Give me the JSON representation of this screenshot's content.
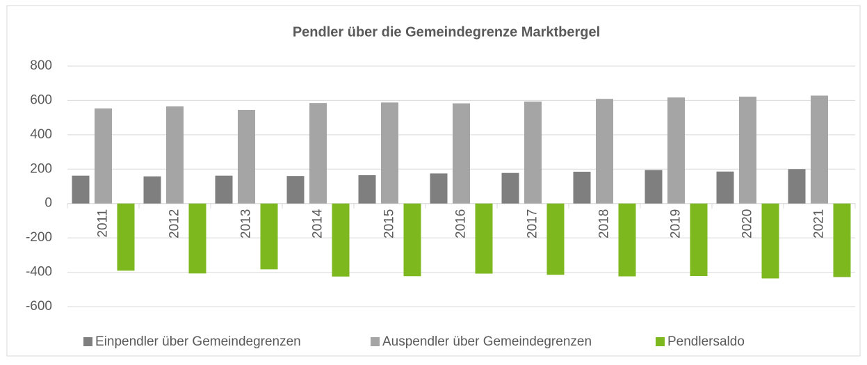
{
  "chart_data": {
    "type": "bar",
    "title": "Pendler über die Gemeindegrenze Marktbergel",
    "categories": [
      "2011",
      "2012",
      "2013",
      "2014",
      "2015",
      "2016",
      "2017",
      "2018",
      "2019",
      "2020",
      "2021"
    ],
    "series": [
      {
        "name": "Einpendler über Gemeindegrenzen",
        "color": "#7f7f7f",
        "values": [
          162,
          158,
          162,
          160,
          165,
          175,
          178,
          185,
          195,
          186,
          200
        ]
      },
      {
        "name": "Auspendler über Gemeindegrenzen",
        "color": "#a5a5a5",
        "values": [
          553,
          565,
          545,
          585,
          588,
          583,
          593,
          609,
          617,
          622,
          628
        ]
      },
      {
        "name": "Pendlersaldo",
        "color": "#7db91e",
        "values": [
          -391,
          -407,
          -383,
          -425,
          -423,
          -408,
          -415,
          -424,
          -422,
          -436,
          -428
        ]
      }
    ],
    "ylim": [
      -600,
      800
    ],
    "yticks": [
      -600,
      -400,
      -200,
      0,
      200,
      400,
      600,
      800
    ],
    "grid": true,
    "legend": "bottom"
  }
}
